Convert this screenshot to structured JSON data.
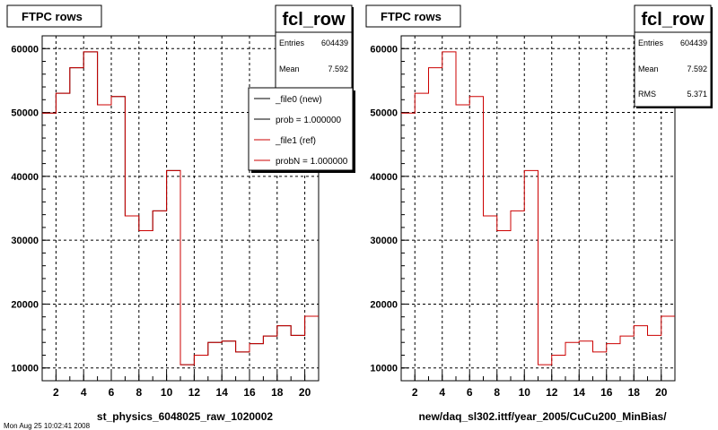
{
  "chart_data": [
    {
      "type": "line",
      "title": "FTPC rows",
      "xlabel": "st_physics_6048025_raw_1020002",
      "ylabel": "",
      "xlim": [
        1,
        21
      ],
      "ylim": [
        8000,
        62000
      ],
      "x_ticks": [
        "2",
        "4",
        "6",
        "8",
        "10",
        "12",
        "14",
        "16",
        "18",
        "20"
      ],
      "y_ticks": [
        "10000",
        "20000",
        "30000",
        "40000",
        "50000",
        "60000"
      ],
      "y_tick_text": [
        "10000",
        "20000",
        "30000",
        "40000",
        "50000",
        "60000"
      ],
      "grid": true,
      "series": [
        {
          "name": "_file0 (new)",
          "color": "#000000",
          "bins": [
            1,
            2,
            3,
            4,
            5,
            6,
            7,
            8,
            9,
            10,
            11,
            12,
            13,
            14,
            15,
            16,
            17,
            18,
            19,
            20,
            21
          ],
          "values": [
            49900,
            53000,
            57000,
            59500,
            51200,
            52500,
            33800,
            31500,
            34600,
            40900,
            10500,
            12000,
            14000,
            14200,
            12500,
            13800,
            15000,
            16600,
            15100,
            18100
          ]
        },
        {
          "name": "_file1 (ref)",
          "color": "#cc0000",
          "bins": [
            1,
            2,
            3,
            4,
            5,
            6,
            7,
            8,
            9,
            10,
            11,
            12,
            13,
            14,
            15,
            16,
            17,
            18,
            19,
            20,
            21
          ],
          "values": [
            49900,
            53000,
            57000,
            59500,
            51200,
            52500,
            33800,
            31500,
            34600,
            40900,
            10500,
            12000,
            14000,
            14200,
            12500,
            13800,
            15000,
            16600,
            15100,
            18100
          ]
        }
      ],
      "stats": {
        "name": "fcl_row",
        "entries_label": "Entries",
        "entries": "604439",
        "mean_label": "Mean",
        "mean": "7.592"
      },
      "legend": [
        "_file0 (new)",
        "prob = 1.000000",
        "_file1 (ref)",
        "probN = 1.000000"
      ],
      "legend_colors": [
        "#000000",
        "#000000",
        "#cc0000",
        "#cc0000"
      ],
      "legend_position": "top-right",
      "footer_text": "Mon Aug 25 10:02:41 2008"
    },
    {
      "type": "line",
      "title": "FTPC rows",
      "xlabel": "new/daq_sl302.ittf/year_2005/CuCu200_MinBias/",
      "ylabel": "",
      "xlim": [
        1,
        21
      ],
      "ylim": [
        8000,
        62000
      ],
      "x_ticks": [
        "2",
        "4",
        "6",
        "8",
        "10",
        "12",
        "14",
        "16",
        "18",
        "20"
      ],
      "y_ticks": [
        "10000",
        "20000",
        "30000",
        "40000",
        "50000",
        "60000"
      ],
      "y_tick_text": [
        "10000",
        "20000",
        "30000",
        "40000",
        "50000",
        "60000"
      ],
      "grid": true,
      "series": [
        {
          "name": "",
          "color": "#cc0000",
          "bins": [
            1,
            2,
            3,
            4,
            5,
            6,
            7,
            8,
            9,
            10,
            11,
            12,
            13,
            14,
            15,
            16,
            17,
            18,
            19,
            20,
            21
          ],
          "values": [
            49900,
            53000,
            57000,
            59500,
            51200,
            52500,
            33800,
            31500,
            34600,
            40900,
            10500,
            12000,
            14000,
            14200,
            12500,
            13800,
            15000,
            16600,
            15100,
            18100
          ]
        }
      ],
      "stats": {
        "name": "fcl_row",
        "entries_label": "Entries",
        "entries": "604439",
        "mean_label": "Mean",
        "mean": "7.592",
        "rms_label": "RMS",
        "rms": "5.371"
      }
    }
  ]
}
